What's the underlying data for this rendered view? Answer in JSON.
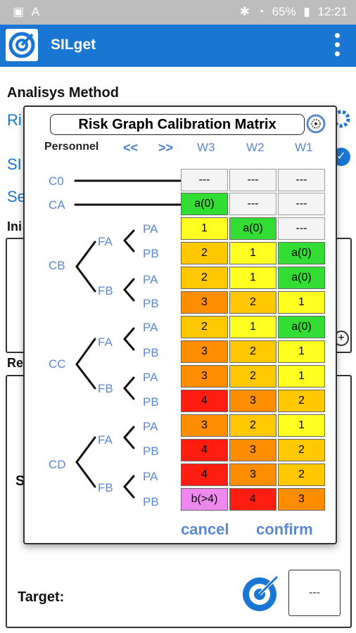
{
  "statusbar": {
    "battery": "65%",
    "time": "12:21"
  },
  "appbar": {
    "title": "SILget"
  },
  "background": {
    "analysis_label": "Analisys Method",
    "ri_text": "Ri",
    "si_text": "SI",
    "se_text": "Se",
    "ini_text": "Ini",
    "re_text": "Re",
    "s_text": "S",
    "target_label": "Target:",
    "target_value": "---"
  },
  "dialog": {
    "title": "Risk Graph Calibration Matrix",
    "personnel_label": "Personnel",
    "nav_prev": "<<",
    "nav_next": ">>",
    "columns": [
      "W3",
      "W2",
      "W1"
    ],
    "labels": {
      "c0": "C0",
      "ca": "CA",
      "cb": "CB",
      "cc": "CC",
      "cd": "CD",
      "fa": "FA",
      "fb": "FB",
      "pa": "PA",
      "pb": "PB"
    },
    "cancel": "cancel",
    "confirm": "confirm",
    "rows": [
      [
        "---",
        "---",
        "---"
      ],
      [
        "a(0)",
        "---",
        "---"
      ],
      [
        "1",
        "a(0)",
        "---"
      ],
      [
        "2",
        "1",
        "a(0)"
      ],
      [
        "2",
        "1",
        "a(0)"
      ],
      [
        "3",
        "2",
        "1"
      ],
      [
        "2",
        "1",
        "a(0)"
      ],
      [
        "3",
        "2",
        "1"
      ],
      [
        "3",
        "2",
        "1"
      ],
      [
        "4",
        "3",
        "2"
      ],
      [
        "3",
        "2",
        "1"
      ],
      [
        "4",
        "3",
        "2"
      ],
      [
        "4",
        "3",
        "2"
      ],
      [
        "b(>4)",
        "4",
        "3"
      ]
    ],
    "row_colors": [
      [
        "gray",
        "gray",
        "gray"
      ],
      [
        "green",
        "gray",
        "gray"
      ],
      [
        "yellow",
        "green",
        "gray"
      ],
      [
        "lorange",
        "yellow",
        "green"
      ],
      [
        "lorange",
        "yellow",
        "green"
      ],
      [
        "orange",
        "lorange",
        "yellow"
      ],
      [
        "lorange",
        "yellow",
        "green"
      ],
      [
        "orange",
        "lorange",
        "yellow"
      ],
      [
        "orange",
        "lorange",
        "yellow"
      ],
      [
        "red",
        "orange",
        "lorange"
      ],
      [
        "orange",
        "lorange",
        "yellow"
      ],
      [
        "red",
        "orange",
        "lorange"
      ],
      [
        "red",
        "orange",
        "lorange"
      ],
      [
        "pink",
        "red",
        "orange"
      ]
    ]
  }
}
